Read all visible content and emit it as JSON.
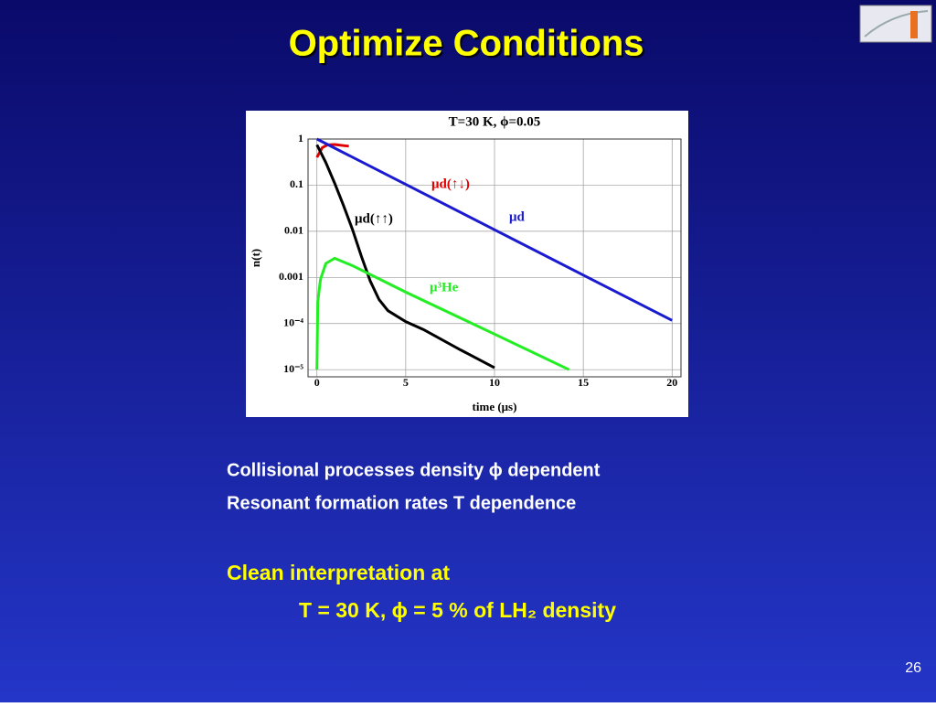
{
  "title": "Optimize Conditions",
  "chart_data": {
    "type": "line",
    "title": "T=30 K, ϕ=0.05",
    "x_label": "time (μs)",
    "y_label": "n(t)",
    "xlim": [
      -0.5,
      20.5
    ],
    "xticks": [
      0,
      5,
      10,
      15,
      20
    ],
    "ylim": [
      7e-06,
      1
    ],
    "ylog": true,
    "grid": true,
    "yticks": [
      1,
      0.1,
      0.01,
      0.001,
      {
        "value": 0.0001,
        "label": "10⁻⁴"
      },
      {
        "value": 1e-05,
        "label": "10⁻⁵"
      }
    ],
    "series": [
      {
        "name": "μd(↑↓)",
        "color": "#e00000",
        "x": [
          0,
          0.3,
          0.6,
          1,
          1.5,
          1.8
        ],
        "values": [
          0.4,
          0.65,
          0.75,
          0.76,
          0.72,
          0.7
        ]
      },
      {
        "name": "μd(↑↑)",
        "color": "#000000",
        "x": [
          0,
          0.5,
          1,
          1.5,
          2,
          2.5,
          3,
          3.5,
          4,
          5,
          6,
          8,
          10
        ],
        "values": [
          0.75,
          0.31,
          0.11,
          0.036,
          0.011,
          0.0029,
          0.00084,
          0.00033,
          0.00019,
          0.00011,
          7.4e-05,
          2.8e-05,
          1.1e-05
        ]
      },
      {
        "name": "μd",
        "color": "#1a1ad0",
        "x": [
          0,
          5,
          10,
          15,
          20
        ],
        "values": [
          1,
          0.104,
          0.0108,
          0.00112,
          0.000117
        ]
      },
      {
        "name": "μ³He",
        "color": "#22ee22",
        "x": [
          0,
          0.05,
          0.2,
          0.5,
          1,
          2,
          5,
          10,
          14.2
        ],
        "values": [
          1e-05,
          0.0003,
          0.0009,
          0.002,
          0.0026,
          0.0018,
          0.00048,
          5.9e-05,
          1e-05
        ]
      }
    ]
  },
  "bullets": [
    "Collisional processes density ϕ dependent",
    "Resonant formation rates T dependence"
  ],
  "highlight": [
    "Clean interpretation at",
    "T = 30 K, ϕ = 5 % of LH₂ density"
  ],
  "page_number": "26"
}
